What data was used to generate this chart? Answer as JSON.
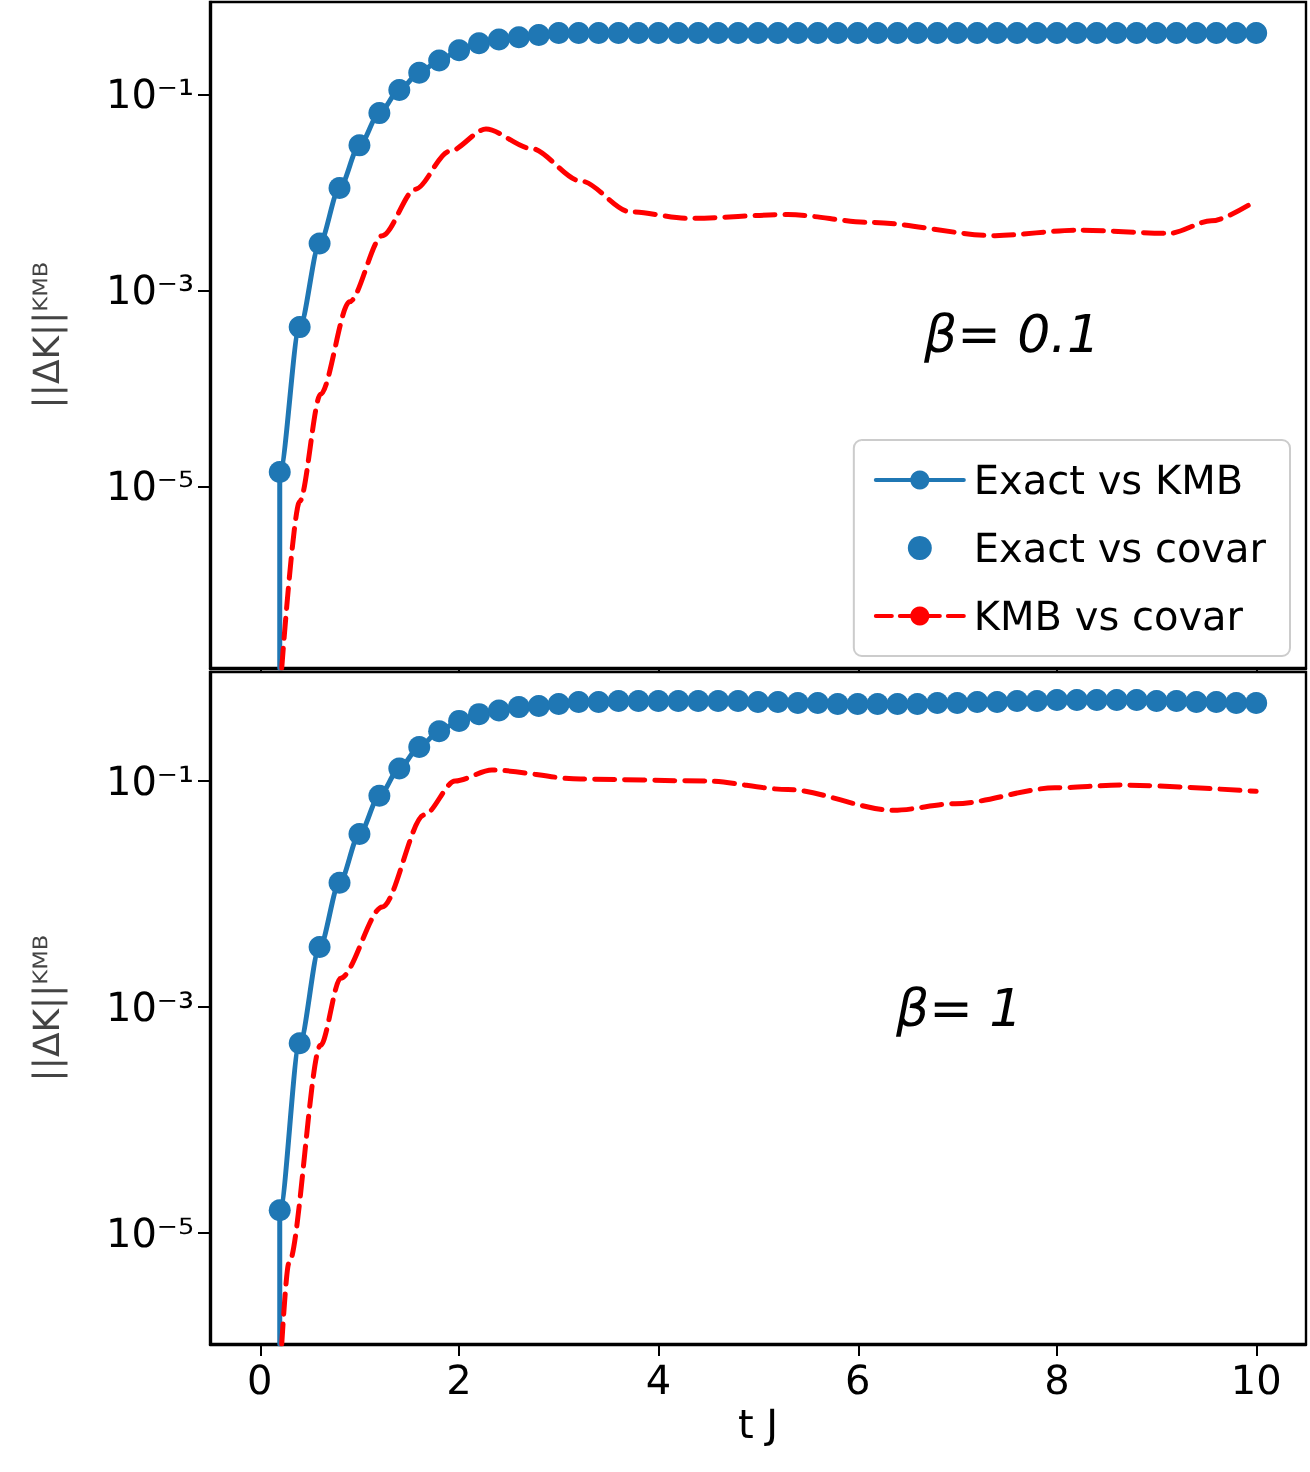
{
  "chart_data": [
    {
      "type": "line",
      "ylabel": "||ΔK||ᴷᴹᴮ",
      "annotations": [
        "β= 0.1"
      ],
      "log": "y",
      "legend": "bottom right",
      "tick_labels": "y",
      "grid": false,
      "xlim": [
        -0.5,
        10.5
      ],
      "xticks": [
        {
          "value": 0,
          "label": null
        },
        {
          "value": 2,
          "label": null
        },
        {
          "value": 4,
          "label": null
        },
        {
          "value": 6,
          "label": null
        },
        {
          "value": 8,
          "label": null
        },
        {
          "value": 10,
          "label": null
        }
      ],
      "ylim": [
        1.4e-07,
        0.87
      ],
      "yticks": [
        {
          "value": 0.1,
          "label": "10⁻¹"
        },
        {
          "value": 0.001,
          "label": "10⁻³"
        },
        {
          "value": 1e-05,
          "label": "10⁻⁵"
        }
      ],
      "series": [
        {
          "name": "Exact vs KMB",
          "type": "line",
          "color": "#1f77b4",
          "line_style": "solid",
          "x": [
            0.2,
            0.2,
            0.4,
            0.6,
            0.8,
            1.0,
            1.2,
            1.4,
            1.6,
            1.8,
            2.0,
            2.2,
            2.4,
            2.6,
            2.8,
            4,
            6,
            8,
            10
          ],
          "values": [
            1.4e-07,
            1.4e-05,
            0.00042,
            0.003,
            0.011,
            0.03,
            0.064,
            0.11,
            0.165,
            0.22,
            0.28,
            0.33,
            0.36,
            0.38,
            0.4,
            0.42,
            0.42,
            0.42,
            0.42
          ]
        },
        {
          "name": "Exact vs covar",
          "type": "scatter",
          "marker": "circle",
          "color": "#1f77b4",
          "x": [
            0.2,
            0.4,
            0.6,
            0.8,
            1.0,
            1.2,
            1.4,
            1.6,
            1.8,
            2.0,
            2.2,
            2.4,
            2.6,
            2.8,
            3.0,
            3.2,
            3.4,
            3.6,
            3.8,
            4.0,
            4.2,
            4.4,
            4.6,
            4.8,
            5.0,
            5.2,
            5.4,
            5.6,
            5.8,
            6.0,
            6.2,
            6.4,
            6.6,
            6.8,
            7.0,
            7.2,
            7.4,
            7.6,
            7.8,
            8.0,
            8.2,
            8.4,
            8.6,
            8.8,
            9.0,
            9.2,
            9.4,
            9.6,
            9.8,
            10.0
          ],
          "values": [
            1.4e-05,
            0.00042,
            0.003,
            0.011,
            0.03,
            0.064,
            0.11,
            0.165,
            0.22,
            0.28,
            0.33,
            0.36,
            0.38,
            0.4,
            0.42,
            0.42,
            0.42,
            0.42,
            0.42,
            0.42,
            0.42,
            0.42,
            0.42,
            0.42,
            0.42,
            0.42,
            0.42,
            0.42,
            0.42,
            0.42,
            0.42,
            0.42,
            0.42,
            0.42,
            0.42,
            0.42,
            0.42,
            0.42,
            0.42,
            0.42,
            0.42,
            0.42,
            0.42,
            0.42,
            0.42,
            0.42,
            0.42,
            0.42,
            0.42,
            0.42
          ]
        },
        {
          "name": "KMB vs covar",
          "type": "line",
          "color": "#ff0000",
          "line_style": "dashed",
          "x": [
            0.22,
            0.4,
            0.61,
            0.9,
            1.23,
            1.56,
            1.9,
            2.27,
            2.72,
            3.22,
            3.72,
            4.3,
            5.3,
            6.14,
            7.38,
            8.2,
            9.13,
            9.55,
            10
          ],
          "values": [
            1.4e-07,
            7e-06,
            8.7e-05,
            0.00076,
            0.0036,
            0.0107,
            0.026,
            0.044,
            0.028,
            0.013,
            0.0063,
            0.0054,
            0.0059,
            0.0049,
            0.0036,
            0.0041,
            0.0038,
            0.0051,
            0.0082
          ]
        }
      ]
    },
    {
      "type": "line",
      "xlabel": "t J",
      "ylabel": "||ΔK||ᴷᴹᴮ",
      "annotations": [
        "β= 1"
      ],
      "log": "y",
      "grid": false,
      "xlim": [
        -0.5,
        10.5
      ],
      "xticks": [
        0,
        2,
        4,
        6,
        8,
        10
      ],
      "ylim": [
        1.05e-06,
        0.92
      ],
      "yticks": [
        {
          "value": 0.1,
          "label": "10⁻¹"
        },
        {
          "value": 0.001,
          "label": "10⁻³"
        },
        {
          "value": 1e-05,
          "label": "10⁻⁵"
        }
      ],
      "series": [
        {
          "type": "line",
          "color": "#1f77b4",
          "line_style": "solid",
          "x": [
            0.2,
            0.2,
            0.4,
            0.6,
            0.8,
            1.0,
            1.2,
            1.4,
            1.6,
            1.8,
            2.0,
            2.2,
            2.4,
            2.6,
            2.8,
            3.0,
            4.0,
            5.0,
            6.0,
            7.0,
            8.0,
            9.0,
            10.0
          ],
          "values": [
            1.05e-06,
            1.6e-05,
            0.00048,
            0.0034,
            0.0126,
            0.034,
            0.074,
            0.129,
            0.2,
            0.275,
            0.34,
            0.39,
            0.42,
            0.45,
            0.46,
            0.48,
            0.51,
            0.5,
            0.48,
            0.49,
            0.52,
            0.51,
            0.49
          ]
        },
        {
          "type": "scatter",
          "marker": "circle",
          "color": "#1f77b4",
          "x": [
            0.2,
            0.4,
            0.6,
            0.8,
            1.0,
            1.2,
            1.4,
            1.6,
            1.8,
            2.0,
            2.2,
            2.4,
            2.6,
            2.8,
            3.0,
            3.2,
            3.4,
            3.6,
            3.8,
            4.0,
            4.2,
            4.4,
            4.6,
            4.8,
            5.0,
            5.2,
            5.4,
            5.6,
            5.8,
            6.0,
            6.2,
            6.4,
            6.6,
            6.8,
            7.0,
            7.2,
            7.4,
            7.6,
            7.8,
            8.0,
            8.2,
            8.4,
            8.6,
            8.8,
            9.0,
            9.2,
            9.4,
            9.6,
            9.8,
            10.0
          ],
          "values": [
            1.6e-05,
            0.00048,
            0.0034,
            0.0126,
            0.034,
            0.074,
            0.129,
            0.2,
            0.275,
            0.34,
            0.39,
            0.42,
            0.45,
            0.46,
            0.48,
            0.5,
            0.5,
            0.51,
            0.51,
            0.51,
            0.51,
            0.51,
            0.51,
            0.51,
            0.5,
            0.5,
            0.49,
            0.49,
            0.48,
            0.48,
            0.48,
            0.48,
            0.48,
            0.49,
            0.49,
            0.5,
            0.5,
            0.51,
            0.51,
            0.52,
            0.52,
            0.52,
            0.52,
            0.52,
            0.51,
            0.51,
            0.5,
            0.5,
            0.49,
            0.49
          ]
        },
        {
          "type": "line",
          "color": "#ff0000",
          "line_style": "dashed",
          "x": [
            0.22,
            0.29,
            0.61,
            0.81,
            1.23,
            1.65,
            1.96,
            2.33,
            3.22,
            4.47,
            5.3,
            6.36,
            6.98,
            7.98,
            8.64,
            10
          ],
          "values": [
            1.05e-06,
            5.4e-06,
            0.00046,
            0.0018,
            0.0077,
            0.05,
            0.1,
            0.125,
            0.104,
            0.1,
            0.084,
            0.055,
            0.063,
            0.087,
            0.092,
            0.081
          ]
        }
      ]
    }
  ]
}
